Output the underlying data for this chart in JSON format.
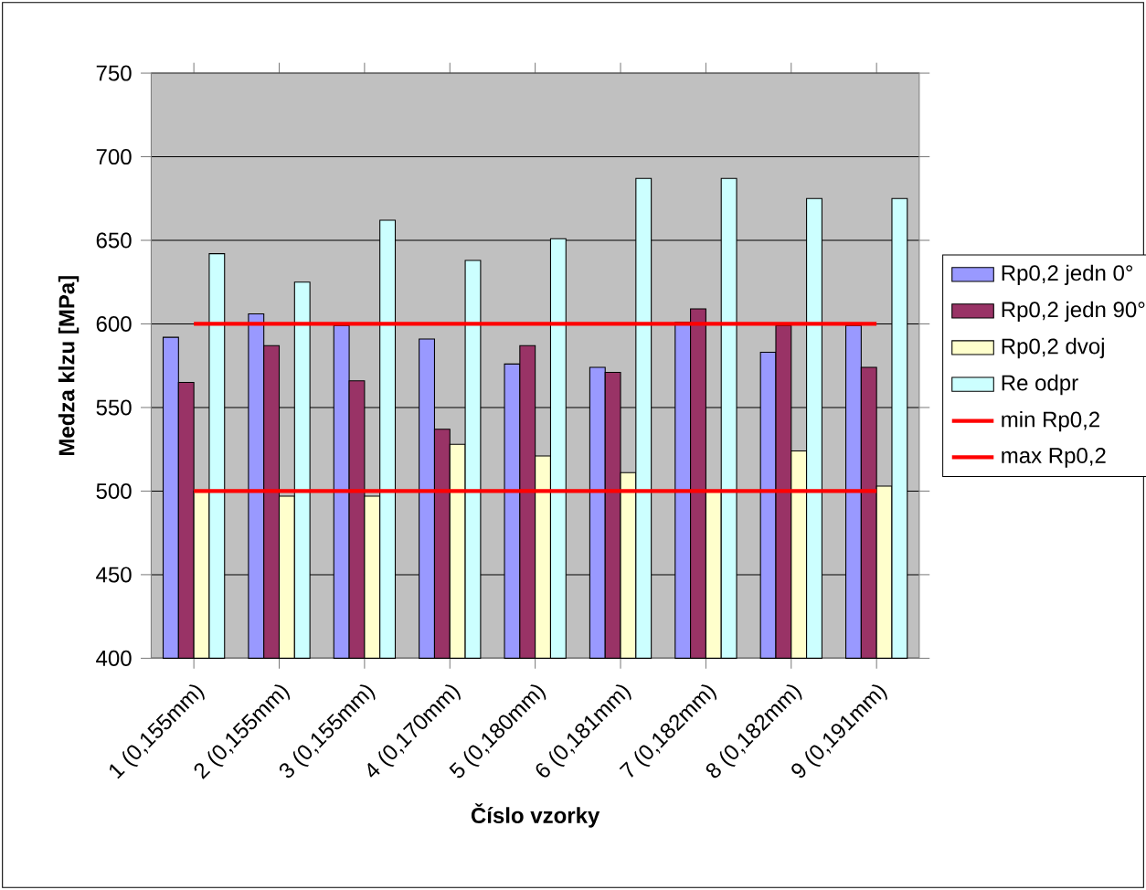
{
  "chart_data": {
    "type": "bar",
    "xlabel": "Číslo vzorky",
    "ylabel": "Medza klzu [MPa]",
    "categories": [
      "1 (0,155mm)",
      "2 (0,155mm)",
      "3 (0,155mm)",
      "4 (0,170mm)",
      "5 (0,180mm)",
      "6 (0,181mm)",
      "7 (0,182mm)",
      "8 (0,182mm)",
      "9 (0,191mm)"
    ],
    "series": [
      {
        "name": "Rp0,2 jedn 0°",
        "color": "#9999ff",
        "values": [
          592,
          606,
          599,
          591,
          576,
          574,
          601,
          583,
          599
        ]
      },
      {
        "name": "Rp0,2 jedn 90°",
        "color": "#993366",
        "values": [
          565,
          587,
          566,
          537,
          587,
          571,
          609,
          599,
          574
        ]
      },
      {
        "name": "Rp0,2 dvoj",
        "color": "#ffffcc",
        "values": [
          500,
          497,
          497,
          528,
          521,
          511,
          500,
          524,
          503
        ]
      },
      {
        "name": "Re odpr",
        "color": "#ccffff",
        "values": [
          642,
          625,
          662,
          638,
          651,
          687,
          687,
          675,
          675
        ]
      },
      {
        "name": "min Rp0,2",
        "type": "line",
        "color": "#ff0000",
        "values": [
          500,
          500,
          500,
          500,
          500,
          500,
          500,
          500,
          500
        ]
      },
      {
        "name": "max Rp0,2",
        "type": "line",
        "color": "#ff0000",
        "values": [
          600,
          600,
          600,
          600,
          600,
          600,
          600,
          600,
          600
        ]
      }
    ],
    "ylim": [
      400,
      750
    ],
    "yticks": [
      400,
      450,
      500,
      550,
      600,
      650,
      700,
      750
    ],
    "grid": "y",
    "legend": "right",
    "marker": "none",
    "line_style": "solid"
  }
}
